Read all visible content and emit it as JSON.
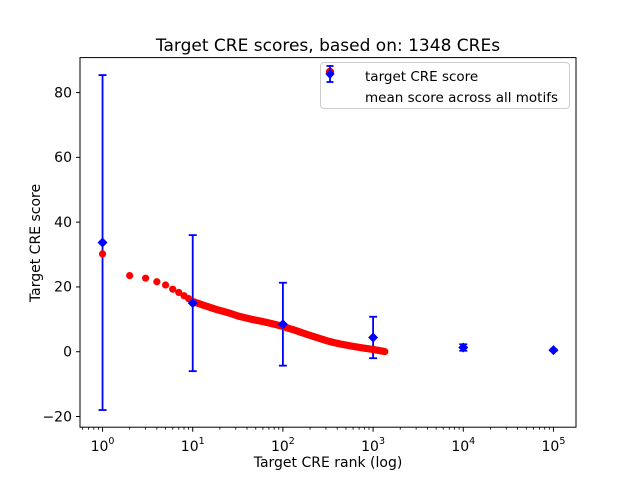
{
  "figure": {
    "background": "#ffffff",
    "plot_background": "#ffffff",
    "spine_color": "#000000"
  },
  "chart_data": {
    "type": "scatter",
    "title": "Target CRE scores, based on: 1348 CREs",
    "xlabel": "Target CRE rank (log)",
    "ylabel": "Target CRE score",
    "x_scale": "log",
    "xlim_log10": [
      -0.25,
      5.25
    ],
    "ylim": [
      -23.3,
      90.8
    ],
    "x_major_tick_exponents": [
      0,
      1,
      2,
      3,
      4,
      5
    ],
    "x_tick_base": "10",
    "y_ticks": [
      -20,
      0,
      20,
      40,
      60,
      80
    ],
    "grid": false,
    "n_target_cres": 1348,
    "legend_position": "upper right",
    "series": [
      {
        "name": "target CRE score",
        "marker": "circle",
        "color": "#ff0000",
        "n_points": 1348,
        "control_points": [
          [
            1,
            30.2
          ],
          [
            2,
            23.5
          ],
          [
            3,
            22.7
          ],
          [
            4,
            21.6
          ],
          [
            5,
            20.6
          ],
          [
            6,
            19.3
          ],
          [
            7,
            18.3
          ],
          [
            8,
            17.3
          ],
          [
            9,
            16.4
          ],
          [
            10,
            15.5
          ],
          [
            13,
            14.4
          ],
          [
            18,
            13.1
          ],
          [
            25,
            12.0
          ],
          [
            32,
            11.0
          ],
          [
            45,
            10.0
          ],
          [
            60,
            9.3
          ],
          [
            80,
            8.5
          ],
          [
            100,
            7.8
          ],
          [
            140,
            6.5
          ],
          [
            178,
            5.5
          ],
          [
            230,
            4.5
          ],
          [
            323,
            3.2
          ],
          [
            430,
            2.4
          ],
          [
            588,
            1.7
          ],
          [
            750,
            1.2
          ],
          [
            1000,
            0.7
          ],
          [
            1150,
            0.4
          ],
          [
            1348,
            0.05
          ]
        ]
      },
      {
        "name": "mean score across all motifs",
        "marker": "diamond",
        "color": "#0000ff",
        "points": [
          {
            "x": 1,
            "mean": 33.7,
            "std": 51.7
          },
          {
            "x": 10,
            "mean": 15.0,
            "std": 21.0
          },
          {
            "x": 100,
            "mean": 8.5,
            "std": 12.8
          },
          {
            "x": 1000,
            "mean": 4.4,
            "std": 6.4
          },
          {
            "x": 10000,
            "mean": 1.3,
            "std": 1.0
          },
          {
            "x": 100000,
            "mean": 0.5,
            "std": 0.2
          }
        ]
      }
    ]
  }
}
